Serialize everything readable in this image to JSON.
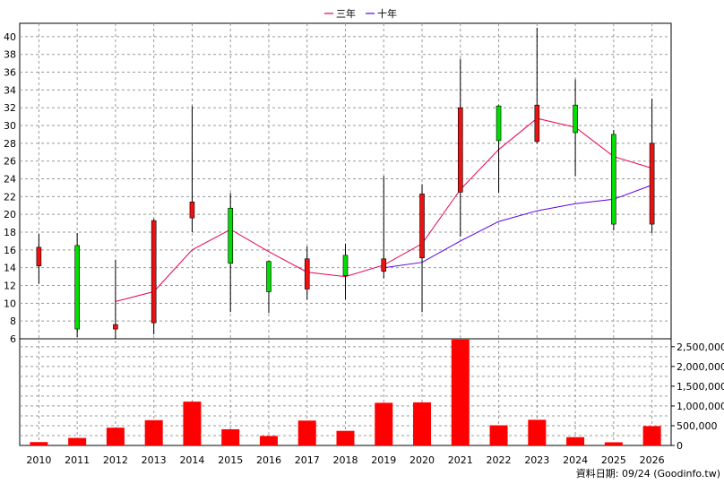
{
  "chart_data": {
    "type": "candlestick",
    "legend": {
      "position": "top-center",
      "items": [
        {
          "name": "三年",
          "color": "#e8005a"
        },
        {
          "name": "十年",
          "color": "#5a00e0"
        }
      ]
    },
    "x": [
      "2010",
      "2011",
      "2012",
      "2013",
      "2014",
      "2015",
      "2016",
      "2017",
      "2018",
      "2019",
      "2020",
      "2021",
      "2022",
      "2023",
      "2024",
      "2025",
      "2026"
    ],
    "price": {
      "yticks": [
        6,
        8,
        10,
        12,
        14,
        16,
        18,
        20,
        22,
        24,
        26,
        28,
        30,
        32,
        34,
        36,
        38,
        40
      ],
      "ylim": [
        6,
        41.5
      ],
      "up_color": "#00dd00",
      "down_color": "#ee1111",
      "candles": [
        {
          "open": 16.3,
          "close": 14.2,
          "high": 17.8,
          "low": 12.2
        },
        {
          "open": 7.1,
          "close": 16.5,
          "high": 17.9,
          "low": 6.2
        },
        {
          "open": 7.6,
          "close": 7.1,
          "high": 14.9,
          "low": 6.0
        },
        {
          "open": 19.3,
          "close": 7.8,
          "high": 19.5,
          "low": 6.5
        },
        {
          "open": 21.4,
          "close": 19.6,
          "high": 32.2,
          "low": 18.0
        },
        {
          "open": 14.5,
          "close": 20.7,
          "high": 22.4,
          "low": 9.0
        },
        {
          "open": 11.3,
          "close": 14.7,
          "high": 14.8,
          "low": 8.9
        },
        {
          "open": 15.0,
          "close": 11.6,
          "high": 16.4,
          "low": 10.4
        },
        {
          "open": 13.1,
          "close": 15.4,
          "high": 16.7,
          "low": 10.4
        },
        {
          "open": 15.0,
          "close": 13.6,
          "high": 24.3,
          "low": 12.8
        },
        {
          "open": 22.3,
          "close": 15.1,
          "high": 23.4,
          "low": 9.0
        },
        {
          "open": 32.0,
          "close": 22.5,
          "high": 37.5,
          "low": 17.5
        },
        {
          "open": 28.3,
          "close": 32.2,
          "high": 32.3,
          "low": 22.4
        },
        {
          "open": 32.3,
          "close": 28.2,
          "high": 41.0,
          "low": 28.0
        },
        {
          "open": 29.2,
          "close": 32.3,
          "high": 35.2,
          "low": 24.3
        },
        {
          "open": 18.9,
          "close": 29.0,
          "high": 29.5,
          "low": 18.2
        },
        {
          "open": 28.0,
          "close": 18.9,
          "high": 33.0,
          "low": 17.9
        }
      ],
      "series": [
        {
          "name": "三年",
          "values": [
            null,
            null,
            10.2,
            11.3,
            16.0,
            18.3,
            15.8,
            13.5,
            13.0,
            14.3,
            16.7,
            22.8,
            27.3,
            30.8,
            29.8,
            26.5,
            25.2
          ]
        },
        {
          "name": "十年",
          "values": [
            null,
            null,
            null,
            null,
            null,
            null,
            null,
            null,
            null,
            14.0,
            14.6,
            17.0,
            19.2,
            20.4,
            21.2,
            21.7,
            23.3
          ]
        }
      ]
    },
    "volume": {
      "ylim": [
        0,
        2700000
      ],
      "yticks": [
        0,
        500000,
        1000000,
        1500000,
        2000000,
        2500000
      ],
      "ytick_labels": [
        "0",
        "500,000",
        "1,000,000",
        "1,500,000",
        "2,000,000",
        "2,500,000"
      ],
      "color": "#ff0000",
      "values": [
        85000,
        190000,
        450000,
        640000,
        1110000,
        410000,
        240000,
        630000,
        370000,
        1080000,
        1090000,
        2680000,
        510000,
        650000,
        210000,
        80000,
        490000
      ]
    },
    "footer_credit": "資料日期: 09/24  (Goodinfo.tw)"
  }
}
